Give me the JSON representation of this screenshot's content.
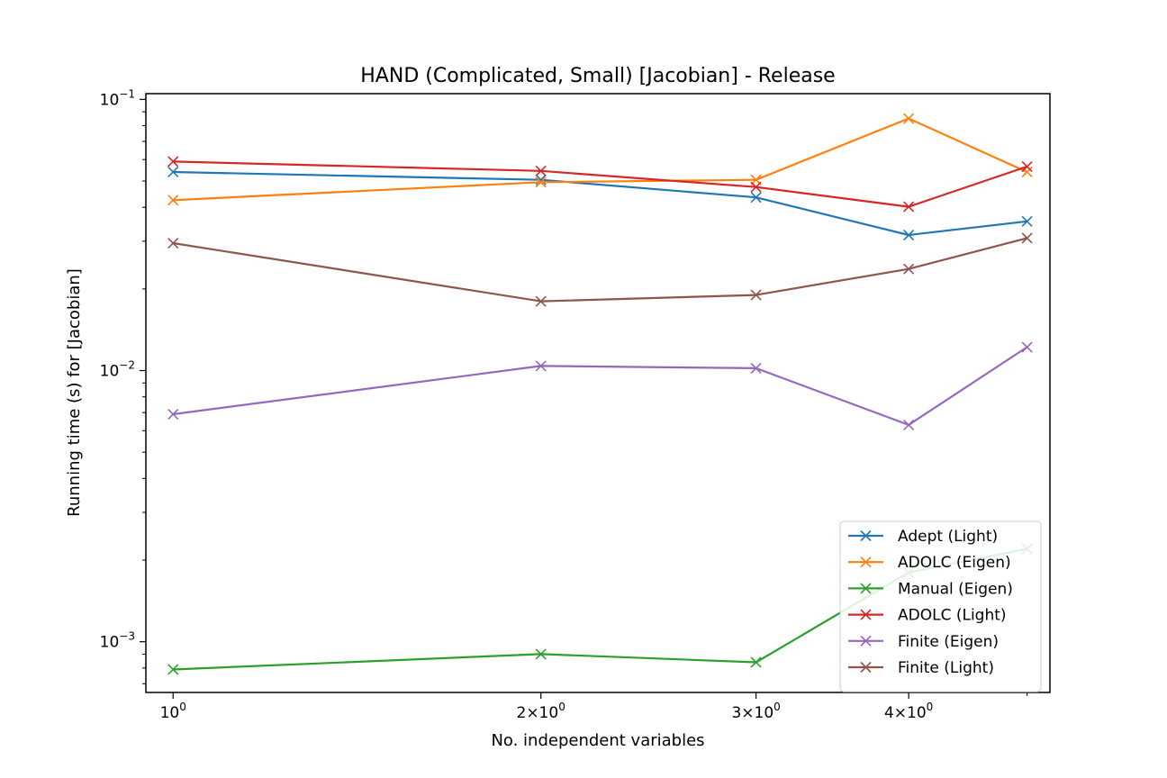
{
  "chart_data": {
    "type": "line",
    "title": "HAND (Complicated, Small) [Jacobian] - Release",
    "xlabel": "No. independent variables",
    "ylabel": "Running time (s) for [Jacobian]",
    "x_scale": "log",
    "y_scale": "log",
    "xlim": [
      0.95,
      5.22
    ],
    "ylim": [
      0.00065,
      0.105
    ],
    "grid": false,
    "legend_position": "lower-right",
    "x": [
      1,
      2,
      3,
      4,
      5
    ],
    "x_ticks": [
      {
        "value": 1,
        "base": "10",
        "exp": "0"
      },
      {
        "value": 2,
        "base": "2×10",
        "exp": "0"
      },
      {
        "value": 3,
        "base": "3×10",
        "exp": "0"
      },
      {
        "value": 4,
        "base": "4×10",
        "exp": "0"
      }
    ],
    "x_minor_ticks": [
      5
    ],
    "y_ticks": [
      {
        "value": 0.1,
        "base": "10",
        "exp": "−1"
      },
      {
        "value": 0.01,
        "base": "10",
        "exp": "−2"
      },
      {
        "value": 0.001,
        "base": "10",
        "exp": "−3"
      }
    ],
    "y_minor_ticks": [
      0.0007,
      0.0008,
      0.0009,
      0.002,
      0.003,
      0.004,
      0.005,
      0.006,
      0.007,
      0.008,
      0.009,
      0.02,
      0.03,
      0.04,
      0.05,
      0.06,
      0.07,
      0.08,
      0.09
    ],
    "series": [
      {
        "name": "Adept (Light)",
        "color": "#1f77b4",
        "values": [
          0.054,
          0.0505,
          0.0435,
          0.0316,
          0.0355
        ]
      },
      {
        "name": "ADOLC (Eigen)",
        "color": "#ff7f0e",
        "values": [
          0.0425,
          0.0495,
          0.0505,
          0.085,
          0.054
        ]
      },
      {
        "name": "Manual (Eigen)",
        "color": "#2ca02c",
        "values": [
          0.00079,
          0.0009,
          0.00084,
          0.0018,
          0.0022
        ]
      },
      {
        "name": "ADOLC (Light)",
        "color": "#d62728",
        "values": [
          0.059,
          0.0545,
          0.0475,
          0.0402,
          0.0565
        ]
      },
      {
        "name": "Finite (Eigen)",
        "color": "#9467bd",
        "values": [
          0.0069,
          0.0104,
          0.0102,
          0.0063,
          0.0122
        ]
      },
      {
        "name": "Finite (Light)",
        "color": "#8c564b",
        "values": [
          0.0295,
          0.018,
          0.019,
          0.0237,
          0.0308
        ]
      }
    ]
  }
}
